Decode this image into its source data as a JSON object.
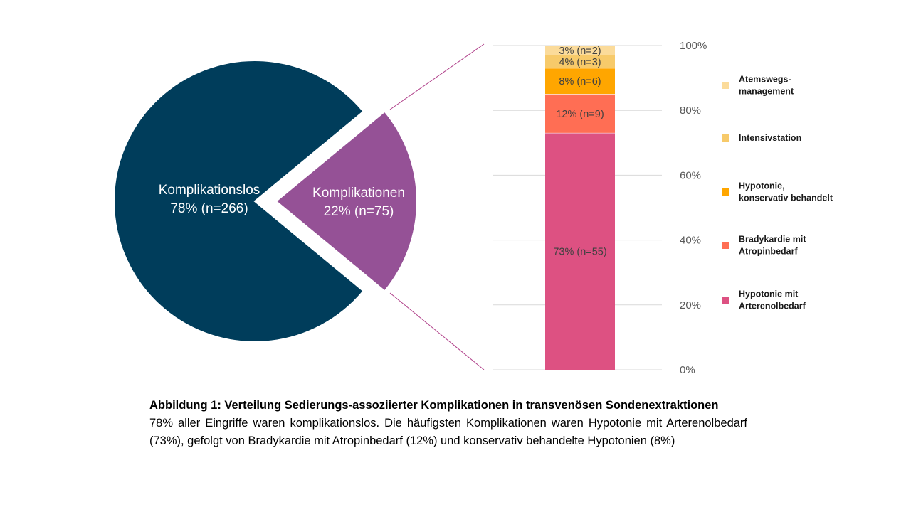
{
  "chart_data": [
    {
      "type": "pie",
      "slices": [
        {
          "label": "Komplikationslos",
          "value_label": "78% (n=266)",
          "percent": 78,
          "n": 266,
          "color": "#003d5b"
        },
        {
          "label": "Komplikationen",
          "value_label": "22% (n=75)",
          "percent": 22,
          "n": 75,
          "color": "#955196",
          "exploded": true
        }
      ]
    },
    {
      "type": "bar",
      "stacked": true,
      "ylim": [
        0,
        100
      ],
      "yticks": [
        "0%",
        "20%",
        "40%",
        "60%",
        "80%",
        "100%"
      ],
      "ytick_values": [
        0,
        20,
        40,
        60,
        80,
        100
      ],
      "grid": true,
      "legend_position": "right",
      "series": [
        {
          "name": "Hypotonie mit Arterenolbedarf",
          "legend_lines": [
            "Hypotonie mit",
            "Arterenolbedarf"
          ],
          "value": 73,
          "label": "73% (n=55)",
          "color": "#dd5182"
        },
        {
          "name": "Bradykardie mit Atropinbedarf",
          "legend_lines": [
            "Bradykardie mit",
            "Atropinbedarf"
          ],
          "value": 12,
          "label": "12% (n=9)",
          "color": "#ff6e54"
        },
        {
          "name": "Hypotonie, konservativ behandelt",
          "legend_lines": [
            "Hypotonie,",
            "konservativ behandelt"
          ],
          "value": 8,
          "label": "8% (n=6)",
          "color": "#ffa600"
        },
        {
          "name": "Intensivstation",
          "legend_lines": [
            "Intensivstation"
          ],
          "value": 4,
          "label": "4% (n=3)",
          "color": "#f7ca6a"
        },
        {
          "name": "Atemswegs-management",
          "legend_lines": [
            "Atemswegs-",
            "management"
          ],
          "value": 3,
          "label": "3% (n=2)",
          "color": "#fbdb9a"
        }
      ]
    }
  ],
  "caption": {
    "title": "Abbildung 1: Verteilung Sedierungs-assoziierter Komplikationen in transvenösen Sondenextraktionen",
    "body": "78% aller Eingriffe waren komplikationslos. Die häufigsten Komplikationen waren Hypotonie mit Arterenolbedarf (73%), gefolgt von Bradykardie mit Atropinbedarf (12%) und konservativ behandelte Hypotonien (8%)"
  }
}
